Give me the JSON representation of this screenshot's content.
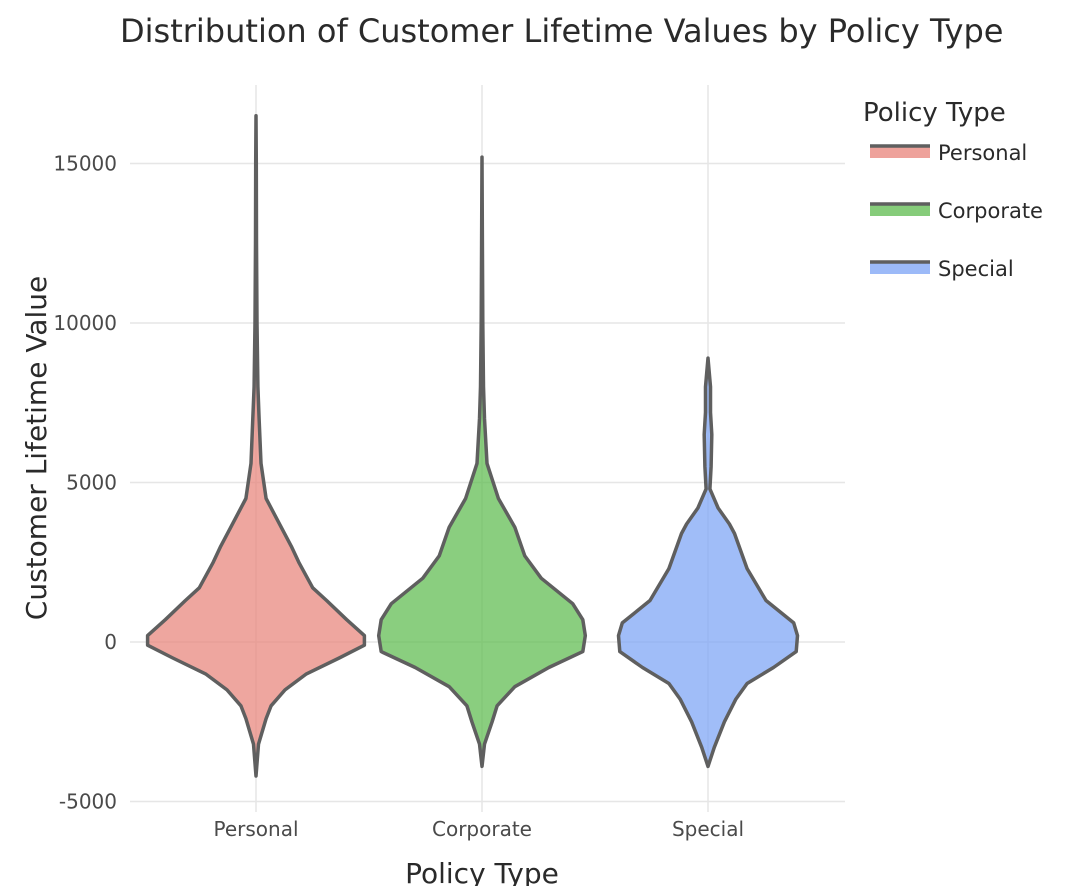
{
  "chart_data": {
    "type": "violin",
    "title": "Distribution of Customer Lifetime Values by Policy Type",
    "xlabel": "Policy Type",
    "ylabel": "Customer Lifetime Value",
    "ylim": [
      -5000,
      17500
    ],
    "yticks": [
      -5000,
      0,
      5000,
      10000,
      15000
    ],
    "ytick_labels": [
      "-5000",
      "0",
      "5000",
      "10000",
      "15000"
    ],
    "categories": [
      "Personal",
      "Corporate",
      "Special"
    ],
    "grid": true,
    "legend": {
      "title": "Policy Type",
      "placement": "top-right"
    },
    "outline_color": "#5f5f5f",
    "series": [
      {
        "name": "Personal",
        "color": "#E8837A",
        "min": -4200,
        "max": 16500,
        "profile": [
          [
            -4200,
            0.0
          ],
          [
            -3200,
            0.02
          ],
          [
            -2400,
            0.08
          ],
          [
            -2000,
            0.12
          ],
          [
            -1500,
            0.23
          ],
          [
            -1000,
            0.4
          ],
          [
            -500,
            0.66
          ],
          [
            -100,
            0.86
          ],
          [
            200,
            0.86
          ],
          [
            700,
            0.72
          ],
          [
            1300,
            0.56
          ],
          [
            1700,
            0.45
          ],
          [
            2500,
            0.34
          ],
          [
            3000,
            0.28
          ],
          [
            3600,
            0.2
          ],
          [
            4500,
            0.08
          ],
          [
            5600,
            0.04
          ],
          [
            7000,
            0.025
          ],
          [
            8000,
            0.015
          ],
          [
            10000,
            0.008
          ],
          [
            12500,
            0.004
          ],
          [
            15000,
            0.002
          ],
          [
            16500,
            0.0
          ]
        ]
      },
      {
        "name": "Corporate",
        "color": "#5DBB4D",
        "min": -3900,
        "max": 15200,
        "profile": [
          [
            -3900,
            0.0
          ],
          [
            -3200,
            0.02
          ],
          [
            -2500,
            0.08
          ],
          [
            -2000,
            0.12
          ],
          [
            -1400,
            0.26
          ],
          [
            -800,
            0.53
          ],
          [
            -300,
            0.8
          ],
          [
            200,
            0.82
          ],
          [
            700,
            0.8
          ],
          [
            1200,
            0.72
          ],
          [
            2000,
            0.47
          ],
          [
            2700,
            0.34
          ],
          [
            3600,
            0.26
          ],
          [
            4500,
            0.13
          ],
          [
            5600,
            0.04
          ],
          [
            7000,
            0.02
          ],
          [
            8000,
            0.012
          ],
          [
            10000,
            0.006
          ],
          [
            12500,
            0.003
          ],
          [
            15200,
            0.0
          ]
        ]
      },
      {
        "name": "Special",
        "color": "#7BA3F5",
        "min": -3900,
        "max": 8900,
        "profile": [
          [
            -3900,
            0.0
          ],
          [
            -3300,
            0.05
          ],
          [
            -2500,
            0.13
          ],
          [
            -1800,
            0.22
          ],
          [
            -1300,
            0.31
          ],
          [
            -800,
            0.52
          ],
          [
            -300,
            0.7
          ],
          [
            200,
            0.71
          ],
          [
            600,
            0.68
          ],
          [
            1300,
            0.46
          ],
          [
            2300,
            0.31
          ],
          [
            3400,
            0.21
          ],
          [
            3700,
            0.17
          ],
          [
            4200,
            0.08
          ],
          [
            4800,
            0.015
          ],
          [
            5500,
            0.025
          ],
          [
            6500,
            0.03
          ],
          [
            7200,
            0.02
          ],
          [
            8000,
            0.02
          ],
          [
            8900,
            0.0
          ]
        ]
      }
    ]
  }
}
